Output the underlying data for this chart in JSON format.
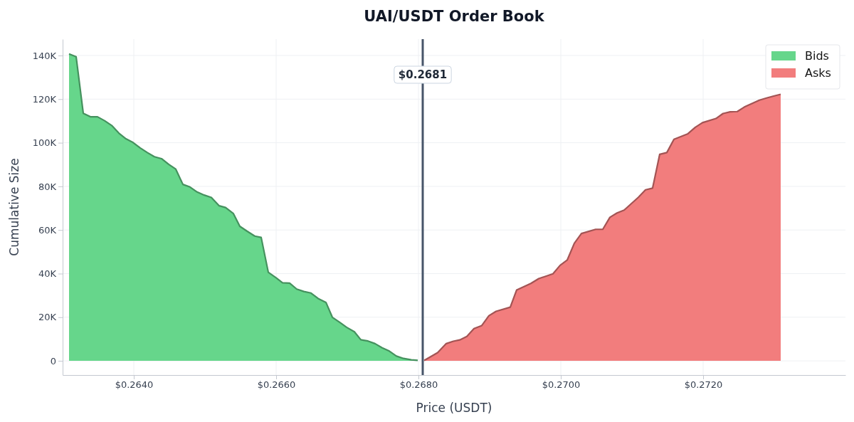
{
  "chart_data": {
    "type": "area",
    "title": "UAI/USDT Order Book",
    "xlabel": "Price (USDT)",
    "ylabel": "Cumulative Size",
    "xlim": [
      0.263,
      0.274
    ],
    "ylim": [
      -6.5,
      147.5
    ],
    "xticks": [
      {
        "value": 0.264,
        "label": "$0.2640"
      },
      {
        "value": 0.266,
        "label": "$0.2660"
      },
      {
        "value": 0.268,
        "label": "$0.2680"
      },
      {
        "value": 0.27,
        "label": "$0.2700"
      },
      {
        "value": 0.272,
        "label": "$0.2720"
      }
    ],
    "yticks": [
      {
        "value": 0,
        "label": "0"
      },
      {
        "value": 20,
        "label": "20K"
      },
      {
        "value": 40,
        "label": "40K"
      },
      {
        "value": 60,
        "label": "60K"
      },
      {
        "value": 80,
        "label": "80K"
      },
      {
        "value": 100,
        "label": "100K"
      },
      {
        "value": 120,
        "label": "120K"
      },
      {
        "value": 140,
        "label": "140K"
      }
    ],
    "grid": true,
    "legend": "top right",
    "ref_lines": [
      {
        "axis": "x",
        "value": 0.26806,
        "label": "$0.2681",
        "color": "#475569"
      }
    ],
    "series": [
      {
        "name": "Bids",
        "color": "#66d68b",
        "x": [
          0.26309,
          0.26319,
          0.26329,
          0.26339,
          0.26349,
          0.26359,
          0.26369,
          0.26379,
          0.26389,
          0.26399,
          0.26409,
          0.26419,
          0.26429,
          0.26439,
          0.26449,
          0.26459,
          0.26469,
          0.26479,
          0.26489,
          0.26499,
          0.26509,
          0.2652,
          0.26529,
          0.2654,
          0.26549,
          0.26559,
          0.2657,
          0.26579,
          0.26589,
          0.266,
          0.26609,
          0.26619,
          0.26629,
          0.26639,
          0.26649,
          0.26659,
          0.2667,
          0.26679,
          0.2669,
          0.26699,
          0.2671,
          0.26719,
          0.26729,
          0.26739,
          0.26749,
          0.26759,
          0.26769,
          0.26779,
          0.2679,
          0.26799
        ],
        "values": [
          140.7,
          139.4,
          113.5,
          111.9,
          111.9,
          110.1,
          107.9,
          104.4,
          101.8,
          100.1,
          97.6,
          95.5,
          93.6,
          92.7,
          90.1,
          87.9,
          80.9,
          79.7,
          77.4,
          76.0,
          74.9,
          71.1,
          70.3,
          67.5,
          61.7,
          59.5,
          57.2,
          56.6,
          40.6,
          38.1,
          35.8,
          35.6,
          32.9,
          31.8,
          31.1,
          28.6,
          26.8,
          20.0,
          17.5,
          15.4,
          13.3,
          9.7,
          9.1,
          7.9,
          6.0,
          4.5,
          2.2,
          1.1,
          0.5,
          0.2
        ]
      },
      {
        "name": "Asks",
        "color": "#f27d7d",
        "x": [
          0.26808,
          0.26827,
          0.26839,
          0.26849,
          0.26858,
          0.26868,
          0.26878,
          0.26889,
          0.26899,
          0.26909,
          0.26929,
          0.26938,
          0.26958,
          0.26969,
          0.26989,
          0.26999,
          0.27009,
          0.27019,
          0.27029,
          0.27049,
          0.27059,
          0.27069,
          0.27079,
          0.27089,
          0.27109,
          0.27119,
          0.27129,
          0.27139,
          0.27149,
          0.27159,
          0.27178,
          0.27189,
          0.27199,
          0.27218,
          0.27228,
          0.27238,
          0.27248,
          0.27258,
          0.27268,
          0.27279,
          0.27289,
          0.27299,
          0.27309
        ],
        "values": [
          0.2,
          3.8,
          7.9,
          9.0,
          9.6,
          11.2,
          14.8,
          16.2,
          20.7,
          22.7,
          24.6,
          32.5,
          35.5,
          37.7,
          39.9,
          43.8,
          46.2,
          53.9,
          58.4,
          60.3,
          60.3,
          65.8,
          67.8,
          69.1,
          75.0,
          78.4,
          79.2,
          94.7,
          95.5,
          101.6,
          104.0,
          107.1,
          109.2,
          111.1,
          113.4,
          114.2,
          114.3,
          116.4,
          117.9,
          119.5,
          120.5,
          121.4,
          122.2
        ]
      }
    ]
  }
}
